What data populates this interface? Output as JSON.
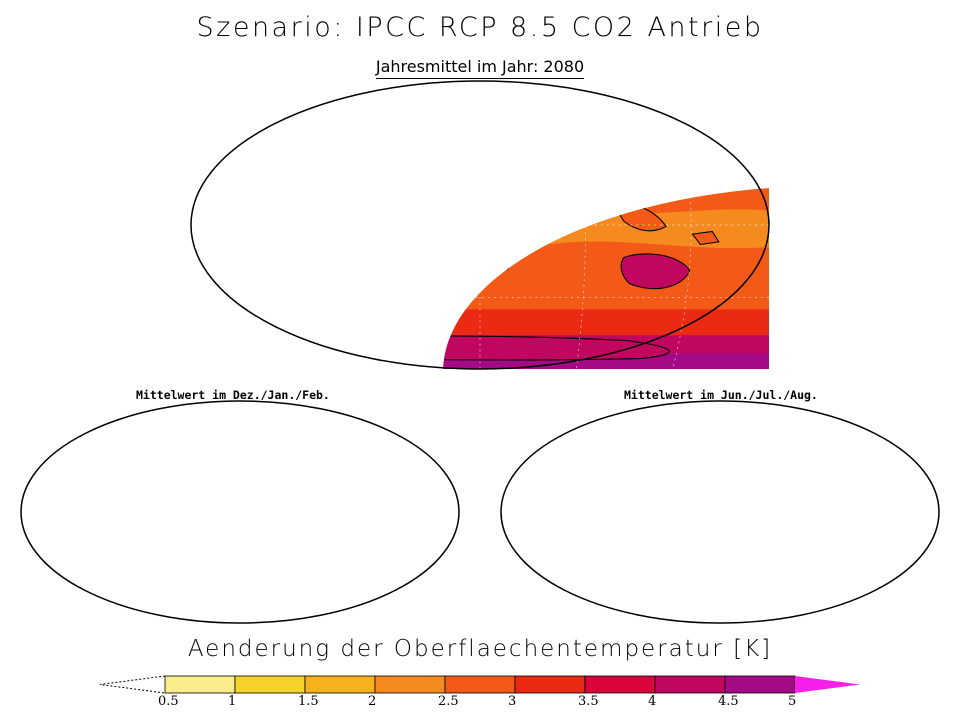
{
  "title": "Szenario: IPCC RCP 8.5 CO2 Antrieb",
  "subtitle": "Jahresmittel im Jahr: 2080",
  "maps": [
    {
      "label": "",
      "season": "annual"
    },
    {
      "label": "Mittelwert im Dez./Jan./Feb.",
      "season": "DJF"
    },
    {
      "label": "Mittelwert im Jun./Jul./Aug.",
      "season": "JJA"
    }
  ],
  "legend": {
    "title": "Aenderung der Oberflaechentemperatur [K]",
    "ticks": [
      "0.5",
      "1",
      "1.5",
      "2",
      "2.5",
      "3",
      "3.5",
      "4",
      "4.5",
      "5"
    ],
    "colors": [
      "#fdf8cf",
      "#f9ec8a",
      "#f6d32a",
      "#f6b21d",
      "#f58a1f",
      "#f45a17",
      "#ea2a12",
      "#d8063b",
      "#c0065e",
      "#a40a86",
      "#f71ee9"
    ]
  }
}
